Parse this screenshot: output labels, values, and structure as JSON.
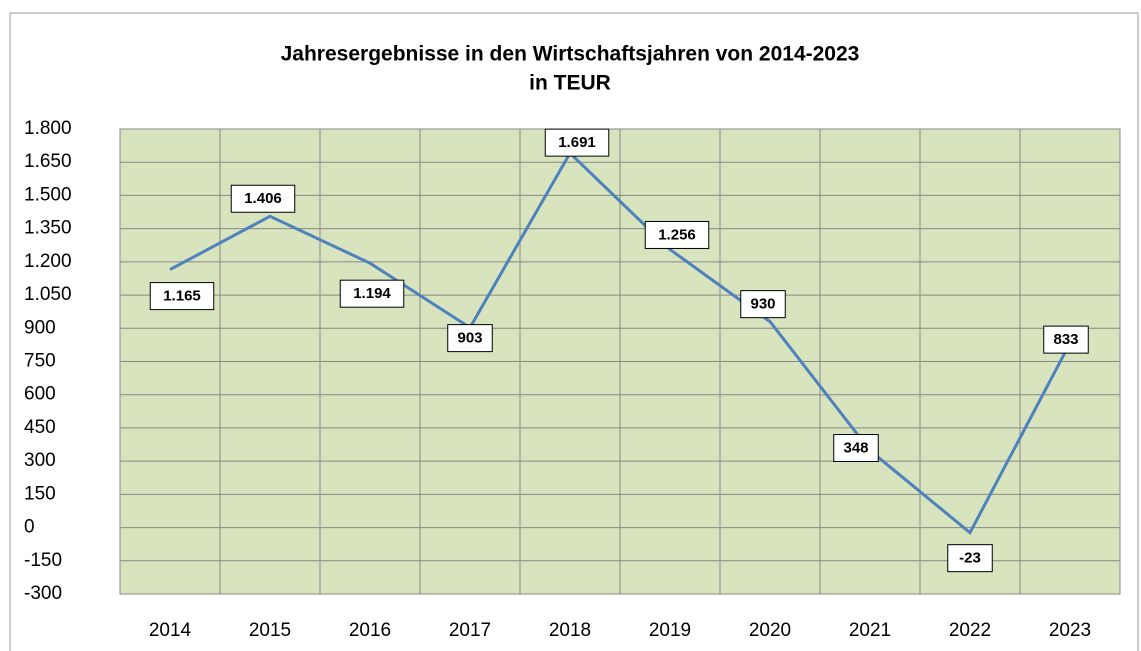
{
  "chart_data": {
    "type": "line",
    "title": [
      "Jahresergebnisse in den Wirtschaftsjahren von 2014-2023",
      "in TEUR"
    ],
    "categories": [
      "2014",
      "2015",
      "2016",
      "2017",
      "2018",
      "2019",
      "2020",
      "2021",
      "2022",
      "2023"
    ],
    "values": [
      1165,
      1406,
      1194,
      903,
      1691,
      1256,
      930,
      348,
      -23,
      833
    ],
    "value_labels": [
      "1.165",
      "1.406",
      "1.194",
      "903",
      "1.691",
      "1.256",
      "930",
      "348",
      "-23",
      "833"
    ],
    "color": "#4f81bd",
    "ylim": [
      -300,
      1800
    ],
    "yticks": [
      -300,
      -150,
      0,
      150,
      300,
      450,
      600,
      750,
      900,
      {
        "value": 1050,
        "label": "1.050"
      },
      {
        "value": 1200,
        "label": "1.200"
      },
      {
        "value": 1350,
        "label": "1.350"
      },
      {
        "value": 1500,
        "label": "1.500"
      },
      {
        "value": 1650,
        "label": "1.650"
      },
      {
        "value": 1800,
        "label": "1.800"
      }
    ],
    "grid": true
  }
}
